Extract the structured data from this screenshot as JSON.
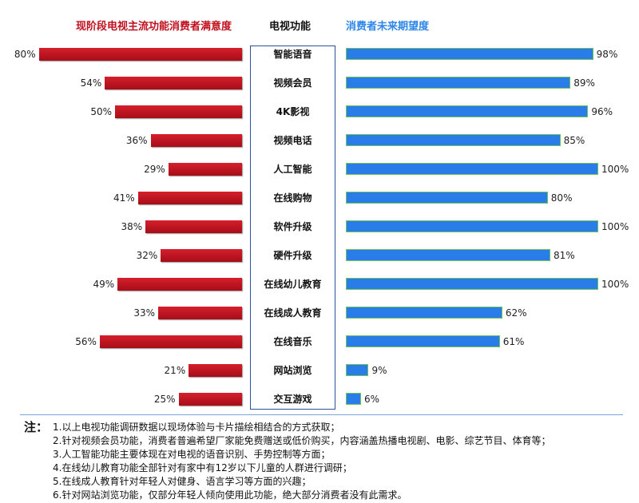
{
  "chart_data": {
    "type": "bar",
    "orientation": "horizontal-butterfly",
    "title_left": "现阶段电视主流功能消费者满意度",
    "title_center": "电视功能",
    "title_right": "消费者未来期望度",
    "categories": [
      "智能语音",
      "视频会员",
      "4K影视",
      "视频电话",
      "人工智能",
      "在线购物",
      "软件升级",
      "硬件升级",
      "在线幼儿教育",
      "在线成人教育",
      "在线音乐",
      "网站浏览",
      "交互游戏"
    ],
    "series": [
      {
        "name": "现阶段电视主流功能消费者满意度",
        "color": "#c0101e",
        "values": [
          80,
          54,
          50,
          36,
          29,
          41,
          38,
          32,
          49,
          33,
          56,
          21,
          25
        ],
        "labels": [
          "80%",
          "54%",
          "50%",
          "36%",
          "29%",
          "41%",
          "38%",
          "32%",
          "49%",
          "33%",
          "56%",
          "21%",
          "25%"
        ]
      },
      {
        "name": "消费者未来期望度",
        "color": "#2a7de8",
        "values": [
          98,
          89,
          96,
          85,
          100,
          80,
          100,
          81,
          100,
          62,
          61,
          9,
          6
        ],
        "labels": [
          "98%",
          "89%",
          "96%",
          "85%",
          "100%",
          "80%",
          "100%",
          "81%",
          "100%",
          "62%",
          "61%",
          "9%",
          "6%"
        ]
      }
    ],
    "xlim": [
      0,
      100
    ]
  },
  "notes": {
    "label": "注：",
    "lines": [
      "1.以上电视功能调研数据以现场体验与卡片描绘相结合的方式获取；",
      "2.针对视频会员功能，消费者普遍希望厂家能免费赠送或低价购买，内容涵盖热播电视剧、电影、综艺节目、体育等；",
      "3.人工智能功能主要体现在对电视的语音识别、手势控制等方面；",
      "4.在线幼儿教育功能全部针对有家中有12岁以下儿童的人群进行调研；",
      "5.在线成人教育针对年轻人对健身、语言学习等方面的兴趣；",
      "6.针对网站浏览功能，仅部分年轻人倾向使用此功能，绝大部分消费者没有此需求。"
    ]
  }
}
